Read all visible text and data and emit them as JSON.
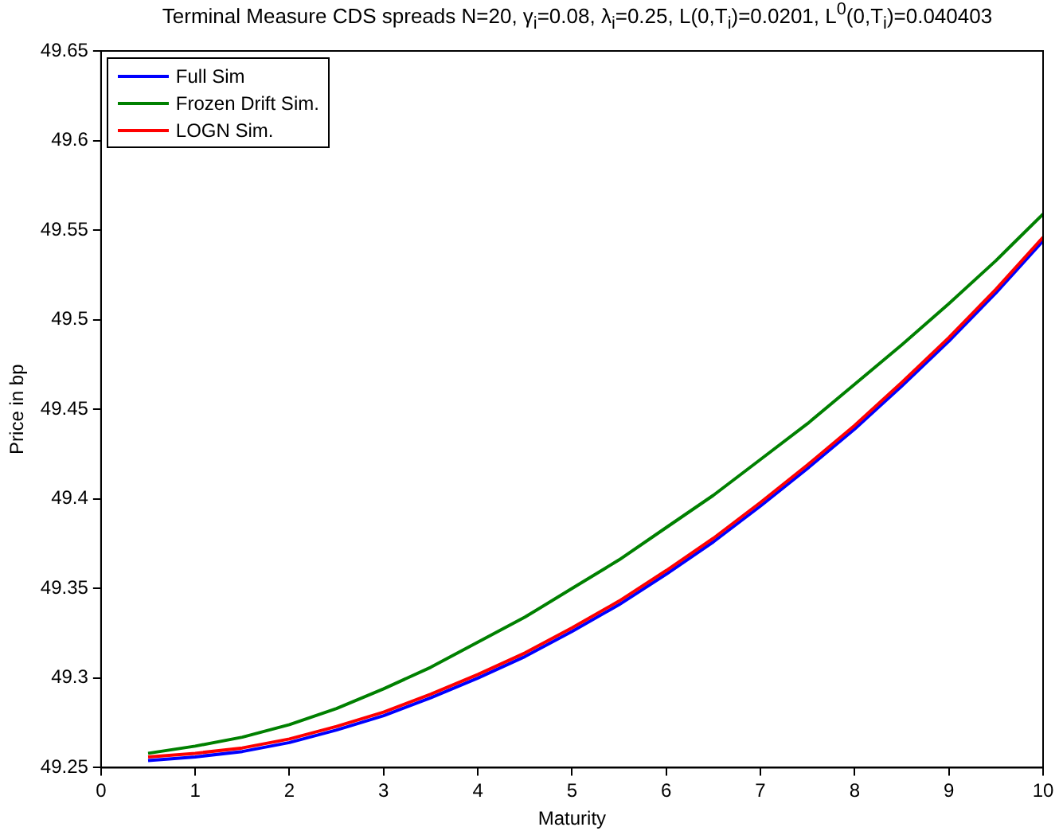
{
  "chart_data": {
    "type": "line",
    "title": "Terminal Measure CDS spreads N=20, γ$_{i}$=0.08, λ$_{i}$=0.25, L(0,T$_{i}$)=0.0201, L$^{0}$(0,T$_{i}$)=0.040403",
    "xlabel": "Maturity",
    "ylabel": "Price in bp",
    "x": [
      0.5,
      1,
      1.5,
      2,
      2.5,
      3,
      3.5,
      4,
      4.5,
      5,
      5.5,
      6,
      6.5,
      7,
      7.5,
      8,
      8.5,
      9,
      9.5,
      10
    ],
    "series": [
      {
        "name": "Full Sim",
        "color": "#0000ff",
        "values": [
          49.254,
          49.256,
          49.259,
          49.264,
          49.271,
          49.279,
          49.289,
          49.3,
          49.312,
          49.326,
          49.341,
          49.358,
          49.376,
          49.396,
          49.417,
          49.439,
          49.463,
          49.488,
          49.515,
          49.544
        ]
      },
      {
        "name": "Frozen Drift Sim.",
        "color": "#008000",
        "values": [
          49.258,
          49.262,
          49.267,
          49.274,
          49.283,
          49.294,
          49.306,
          49.32,
          49.334,
          49.35,
          49.366,
          49.384,
          49.402,
          49.422,
          49.442,
          49.464,
          49.486,
          49.509,
          49.533,
          49.559
        ]
      },
      {
        "name": "LOGN Sim.",
        "color": "#ff0000",
        "values": [
          49.256,
          49.258,
          49.261,
          49.266,
          49.273,
          49.281,
          49.291,
          49.302,
          49.314,
          49.328,
          49.343,
          49.36,
          49.378,
          49.398,
          49.419,
          49.441,
          49.465,
          49.49,
          49.517,
          49.546
        ]
      }
    ],
    "xlim": [
      0,
      10
    ],
    "xticks": [
      0,
      1,
      2,
      3,
      4,
      5,
      6,
      7,
      8,
      9,
      10
    ],
    "ylim": [
      49.25,
      49.65
    ],
    "yticks": [
      49.25,
      49.3,
      49.35,
      49.4,
      49.45,
      49.5,
      49.55,
      49.6,
      49.65
    ],
    "grid": false,
    "legend": "top left",
    "marker": "none",
    "line_style": "solid"
  }
}
